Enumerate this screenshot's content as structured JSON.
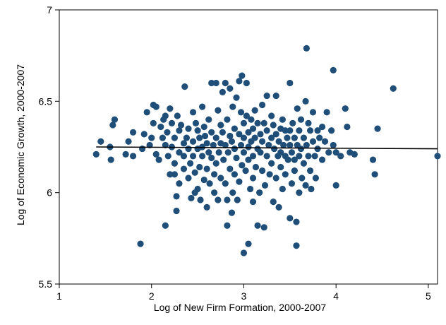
{
  "chart_data": {
    "type": "scatter",
    "xlabel": "Log of New Firm Formation, 2000-2007",
    "ylabel": "Log of Economic Growth, 2000-2007",
    "xlim": [
      1,
      5.1
    ],
    "ylim": [
      5.5,
      7
    ],
    "x_ticks": [
      1,
      2,
      3,
      4,
      5
    ],
    "y_ticks": [
      5.5,
      6,
      6.5,
      7
    ],
    "x_tick_labels": [
      "1",
      "2",
      "3",
      "4",
      "5"
    ],
    "y_tick_labels": [
      "5.5",
      "6",
      "6.5",
      "7"
    ],
    "grid": false,
    "legend": "none",
    "marker_color": "#1f4e79",
    "fit_line": {
      "x": [
        1.4,
        5.1
      ],
      "y": [
        6.25,
        6.24
      ],
      "color": "#000000"
    },
    "points": [
      [
        1.4,
        6.21
      ],
      [
        1.45,
        6.28
      ],
      [
        1.55,
        6.25
      ],
      [
        1.56,
        6.18
      ],
      [
        1.58,
        6.37
      ],
      [
        1.6,
        6.4
      ],
      [
        1.72,
        6.21
      ],
      [
        1.75,
        6.28
      ],
      [
        1.8,
        6.2
      ],
      [
        1.8,
        6.33
      ],
      [
        1.88,
        5.72
      ],
      [
        1.9,
        6.24
      ],
      [
        1.92,
        6.32
      ],
      [
        1.95,
        6.44
      ],
      [
        1.98,
        6.26
      ],
      [
        2.0,
        6.3
      ],
      [
        2.02,
        6.38
      ],
      [
        2.02,
        6.48
      ],
      [
        2.05,
        6.47
      ],
      [
        2.05,
        6.21
      ],
      [
        2.08,
        6.18
      ],
      [
        2.1,
        6.36
      ],
      [
        2.12,
        6.3
      ],
      [
        2.13,
        6.4
      ],
      [
        2.15,
        6.42
      ],
      [
        2.15,
        6.26
      ],
      [
        2.15,
        5.82
      ],
      [
        2.17,
        6.33
      ],
      [
        2.18,
        6.2
      ],
      [
        2.2,
        6.46
      ],
      [
        2.2,
        6.1
      ],
      [
        2.22,
        6.38
      ],
      [
        2.22,
        6.25
      ],
      [
        2.25,
        6.3
      ],
      [
        2.25,
        6.1
      ],
      [
        2.25,
        6.16
      ],
      [
        2.27,
        5.98
      ],
      [
        2.27,
        5.9
      ],
      [
        2.28,
        6.42
      ],
      [
        2.3,
        6.34
      ],
      [
        2.3,
        6.22
      ],
      [
        2.3,
        6.05
      ],
      [
        2.32,
        6.37
      ],
      [
        2.35,
        6.27
      ],
      [
        2.35,
        6.13
      ],
      [
        2.35,
        6.2
      ],
      [
        2.36,
        6.58
      ],
      [
        2.38,
        6.3
      ],
      [
        2.4,
        6.24
      ],
      [
        2.4,
        6.35
      ],
      [
        2.4,
        6.08
      ],
      [
        2.42,
        6.16
      ],
      [
        2.43,
        5.97
      ],
      [
        2.45,
        6.44
      ],
      [
        2.45,
        6.28
      ],
      [
        2.45,
        6.2
      ],
      [
        2.47,
        6.11
      ],
      [
        2.47,
        6.0
      ],
      [
        2.48,
        6.38
      ],
      [
        2.5,
        6.34
      ],
      [
        2.5,
        6.24
      ],
      [
        2.5,
        6.02
      ],
      [
        2.52,
        6.3
      ],
      [
        2.52,
        6.14
      ],
      [
        2.53,
        5.96
      ],
      [
        2.55,
        6.47
      ],
      [
        2.55,
        6.25
      ],
      [
        2.55,
        6.2
      ],
      [
        2.57,
        6.36
      ],
      [
        2.57,
        6.07
      ],
      [
        2.58,
        6.31
      ],
      [
        2.6,
        6.27
      ],
      [
        2.6,
        6.13
      ],
      [
        2.6,
        5.92
      ],
      [
        2.62,
        6.4
      ],
      [
        2.62,
        6.22
      ],
      [
        2.63,
        6.05
      ],
      [
        2.65,
        6.6
      ],
      [
        2.65,
        6.33
      ],
      [
        2.65,
        6.19
      ],
      [
        2.67,
        6.26
      ],
      [
        2.68,
        6.0
      ],
      [
        2.68,
        6.1
      ],
      [
        2.7,
        6.6
      ],
      [
        2.7,
        6.3
      ],
      [
        2.7,
        6.16
      ],
      [
        2.72,
        6.45
      ],
      [
        2.72,
        5.96
      ],
      [
        2.73,
        6.22
      ],
      [
        2.75,
        6.37
      ],
      [
        2.75,
        6.27
      ],
      [
        2.75,
        6.08
      ],
      [
        2.77,
        6.55
      ],
      [
        2.77,
        6.33
      ],
      [
        2.78,
        6.18
      ],
      [
        2.8,
        6.6
      ],
      [
        2.8,
        6.26
      ],
      [
        2.8,
        6.05
      ],
      [
        2.82,
        6.4
      ],
      [
        2.82,
        5.82
      ],
      [
        2.82,
        5.96
      ],
      [
        2.83,
        6.22
      ],
      [
        2.85,
        6.57
      ],
      [
        2.85,
        6.31
      ],
      [
        2.85,
        6.13
      ],
      [
        2.87,
        5.89
      ],
      [
        2.87,
        6.28
      ],
      [
        2.88,
        6.47
      ],
      [
        2.88,
        6.0
      ],
      [
        2.9,
        6.35
      ],
      [
        2.9,
        6.24
      ],
      [
        2.9,
        6.1
      ],
      [
        2.92,
        6.52
      ],
      [
        2.92,
        6.19
      ],
      [
        2.93,
        5.96
      ],
      [
        2.95,
        6.61
      ],
      [
        2.95,
        6.32
      ],
      [
        2.95,
        6.06
      ],
      [
        2.97,
        6.44
      ],
      [
        2.97,
        6.26
      ],
      [
        2.98,
        6.64
      ],
      [
        2.98,
        6.15
      ],
      [
        3.0,
        5.67
      ],
      [
        3.0,
        6.38
      ],
      [
        3.0,
        6.3
      ],
      [
        3.0,
        6.22
      ],
      [
        3.02,
        6.12
      ],
      [
        3.03,
        6.6
      ],
      [
        3.03,
        6.42
      ],
      [
        3.05,
        5.72
      ],
      [
        3.05,
        6.33
      ],
      [
        3.05,
        6.25
      ],
      [
        3.05,
        6.18
      ],
      [
        3.07,
        6.02
      ],
      [
        3.08,
        6.4
      ],
      [
        3.08,
        6.28
      ],
      [
        3.1,
        5.95
      ],
      [
        3.1,
        6.35
      ],
      [
        3.1,
        6.2
      ],
      [
        3.1,
        6.08
      ],
      [
        3.12,
        6.45
      ],
      [
        3.12,
        6.3
      ],
      [
        3.13,
        6.14
      ],
      [
        3.15,
        6.38
      ],
      [
        3.15,
        6.24
      ],
      [
        3.15,
        5.82
      ],
      [
        3.17,
        6.0
      ],
      [
        3.18,
        6.32
      ],
      [
        3.18,
        6.22
      ],
      [
        3.2,
        6.48
      ],
      [
        3.2,
        6.28
      ],
      [
        3.2,
        6.12
      ],
      [
        3.22,
        5.81
      ],
      [
        3.22,
        6.38
      ],
      [
        3.23,
        6.04
      ],
      [
        3.25,
        6.53
      ],
      [
        3.25,
        6.34
      ],
      [
        3.25,
        6.2
      ],
      [
        3.27,
        6.26
      ],
      [
        3.28,
        6.1
      ],
      [
        3.3,
        6.42
      ],
      [
        3.3,
        6.3
      ],
      [
        3.3,
        6.16
      ],
      [
        3.32,
        5.95
      ],
      [
        3.32,
        6.37
      ],
      [
        3.33,
        6.24
      ],
      [
        3.35,
        6.53
      ],
      [
        3.35,
        6.32
      ],
      [
        3.35,
        6.08
      ],
      [
        3.37,
        6.2
      ],
      [
        3.38,
        6.28
      ],
      [
        3.38,
        5.92
      ],
      [
        3.4,
        6.35
      ],
      [
        3.4,
        6.22
      ],
      [
        3.4,
        6.14
      ],
      [
        3.42,
        6.02
      ],
      [
        3.42,
        6.4
      ],
      [
        3.43,
        6.26
      ],
      [
        3.45,
        6.34
      ],
      [
        3.45,
        6.2
      ],
      [
        3.45,
        6.1
      ],
      [
        3.47,
        6.3
      ],
      [
        3.48,
        6.18
      ],
      [
        3.5,
        6.6
      ],
      [
        3.5,
        6.34
      ],
      [
        3.5,
        6.26
      ],
      [
        3.5,
        5.86
      ],
      [
        3.52,
        6.22
      ],
      [
        3.52,
        6.05
      ],
      [
        3.53,
        6.38
      ],
      [
        3.55,
        6.3
      ],
      [
        3.55,
        6.18
      ],
      [
        3.55,
        6.12
      ],
      [
        3.57,
        5.71
      ],
      [
        3.57,
        5.84
      ],
      [
        3.58,
        6.46
      ],
      [
        3.58,
        6.26
      ],
      [
        3.6,
        6.34
      ],
      [
        3.6,
        6.2
      ],
      [
        3.6,
        6.0
      ],
      [
        3.62,
        6.4
      ],
      [
        3.62,
        6.24
      ],
      [
        3.63,
        6.08
      ],
      [
        3.65,
        6.3
      ],
      [
        3.65,
        6.16
      ],
      [
        3.67,
        6.5
      ],
      [
        3.67,
        6.04
      ],
      [
        3.68,
        6.79
      ],
      [
        3.68,
        6.26
      ],
      [
        3.7,
        6.38
      ],
      [
        3.7,
        6.2
      ],
      [
        3.72,
        6.34
      ],
      [
        3.72,
        6.12
      ],
      [
        3.73,
        6.02
      ],
      [
        3.75,
        6.44
      ],
      [
        3.75,
        6.28
      ],
      [
        3.77,
        6.2
      ],
      [
        3.78,
        6.08
      ],
      [
        3.8,
        6.34
      ],
      [
        3.8,
        6.24
      ],
      [
        3.82,
        6.3
      ],
      [
        3.85,
        6.36
      ],
      [
        3.85,
        6.18
      ],
      [
        3.88,
        6.28
      ],
      [
        3.9,
        6.44
      ],
      [
        3.92,
        6.22
      ],
      [
        3.95,
        6.34
      ],
      [
        3.97,
        6.67
      ],
      [
        3.97,
        6.26
      ],
      [
        4.0,
        6.04
      ],
      [
        4.0,
        6.22
      ],
      [
        4.05,
        6.2
      ],
      [
        4.1,
        6.46
      ],
      [
        4.12,
        6.36
      ],
      [
        4.15,
        6.22
      ],
      [
        4.2,
        6.21
      ],
      [
        4.4,
        6.18
      ],
      [
        4.42,
        6.1
      ],
      [
        4.45,
        6.35
      ],
      [
        4.62,
        6.57
      ],
      [
        5.1,
        6.2
      ]
    ]
  }
}
